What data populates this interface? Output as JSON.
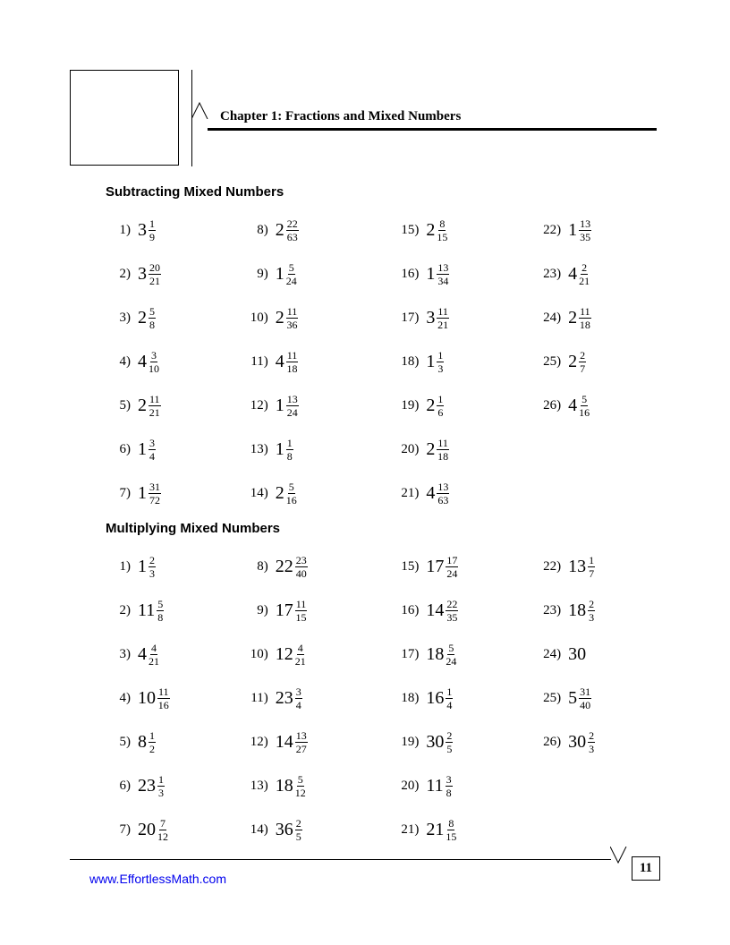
{
  "chapter_title": "Chapter 1: Fractions and Mixed Numbers",
  "footer_url": "www.EffortlessMath.com",
  "page_number": "11",
  "sections": [
    {
      "title": "Subtracting Mixed Numbers",
      "columns": [
        [
          {
            "n": "1)",
            "w": "3",
            "num": "1",
            "den": "9"
          },
          {
            "n": "2)",
            "w": "3",
            "num": "20",
            "den": "21"
          },
          {
            "n": "3)",
            "w": "2",
            "num": "5",
            "den": "8"
          },
          {
            "n": "4)",
            "w": "4",
            "num": "3",
            "den": "10"
          },
          {
            "n": "5)",
            "w": "2",
            "num": "11",
            "den": "21"
          },
          {
            "n": "6)",
            "w": "1",
            "num": "3",
            "den": "4"
          },
          {
            "n": "7)",
            "w": "1",
            "num": "31",
            "den": "72"
          }
        ],
        [
          {
            "n": "8)",
            "w": "2",
            "num": "22",
            "den": "63"
          },
          {
            "n": "9)",
            "w": "1",
            "num": "5",
            "den": "24"
          },
          {
            "n": "10)",
            "w": "2",
            "num": "11",
            "den": "36"
          },
          {
            "n": "11)",
            "w": "4",
            "num": "11",
            "den": "18"
          },
          {
            "n": "12)",
            "w": "1",
            "num": "13",
            "den": "24"
          },
          {
            "n": "13)",
            "w": "1",
            "num": "1",
            "den": "8"
          },
          {
            "n": "14)",
            "w": "2",
            "num": "5",
            "den": "16"
          }
        ],
        [
          {
            "n": "15)",
            "w": "2",
            "num": "8",
            "den": "15"
          },
          {
            "n": "16)",
            "w": "1",
            "num": "13",
            "den": "34"
          },
          {
            "n": "17)",
            "w": "3",
            "num": "11",
            "den": "21"
          },
          {
            "n": "18)",
            "w": "1",
            "num": "1",
            "den": "3"
          },
          {
            "n": "19)",
            "w": "2",
            "num": "1",
            "den": "6"
          },
          {
            "n": "20)",
            "w": "2",
            "num": "11",
            "den": "18"
          },
          {
            "n": "21)",
            "w": "4",
            "num": "13",
            "den": "63"
          }
        ],
        [
          {
            "n": "22)",
            "w": "1",
            "num": "13",
            "den": "35"
          },
          {
            "n": "23)",
            "w": "4",
            "num": "2",
            "den": "21"
          },
          {
            "n": "24)",
            "w": "2",
            "num": "11",
            "den": "18"
          },
          {
            "n": "25)",
            "w": "2",
            "num": "2",
            "den": "7"
          },
          {
            "n": "26)",
            "w": "4",
            "num": "5",
            "den": "16"
          }
        ]
      ]
    },
    {
      "title": "Multiplying Mixed Numbers",
      "columns": [
        [
          {
            "n": "1)",
            "w": "1",
            "num": "2",
            "den": "3"
          },
          {
            "n": "2)",
            "w": "11",
            "num": "5",
            "den": "8"
          },
          {
            "n": "3)",
            "w": "4",
            "num": "4",
            "den": "21"
          },
          {
            "n": "4)",
            "w": "10",
            "num": "11",
            "den": "16"
          },
          {
            "n": "5)",
            "w": "8",
            "num": "1",
            "den": "2"
          },
          {
            "n": "6)",
            "w": "23",
            "num": "1",
            "den": "3"
          },
          {
            "n": "7)",
            "w": "20",
            "num": "7",
            "den": "12"
          }
        ],
        [
          {
            "n": "8)",
            "w": "22",
            "num": "23",
            "den": "40"
          },
          {
            "n": "9)",
            "w": "17",
            "num": "11",
            "den": "15"
          },
          {
            "n": "10)",
            "w": "12",
            "num": "4",
            "den": "21"
          },
          {
            "n": "11)",
            "w": "23",
            "num": "3",
            "den": "4"
          },
          {
            "n": "12)",
            "w": "14",
            "num": "13",
            "den": "27"
          },
          {
            "n": "13)",
            "w": "18",
            "num": "5",
            "den": "12"
          },
          {
            "n": "14)",
            "w": "36",
            "num": "2",
            "den": "5"
          }
        ],
        [
          {
            "n": "15)",
            "w": "17",
            "num": "17",
            "den": "24"
          },
          {
            "n": "16)",
            "w": "14",
            "num": "22",
            "den": "35"
          },
          {
            "n": "17)",
            "w": "18",
            "num": "5",
            "den": "24"
          },
          {
            "n": "18)",
            "w": "16",
            "num": "1",
            "den": "4"
          },
          {
            "n": "19)",
            "w": "30",
            "num": "2",
            "den": "5"
          },
          {
            "n": "20)",
            "w": "11",
            "num": "3",
            "den": "8"
          },
          {
            "n": "21)",
            "w": "21",
            "num": "8",
            "den": "15"
          }
        ],
        [
          {
            "n": "22)",
            "w": "13",
            "num": "1",
            "den": "7"
          },
          {
            "n": "23)",
            "w": "18",
            "num": "2",
            "den": "3"
          },
          {
            "n": "24)",
            "w": "30",
            "num": "",
            "den": ""
          },
          {
            "n": "25)",
            "w": "5",
            "num": "31",
            "den": "40"
          },
          {
            "n": "26)",
            "w": "30",
            "num": "2",
            "den": "3"
          }
        ]
      ]
    }
  ]
}
